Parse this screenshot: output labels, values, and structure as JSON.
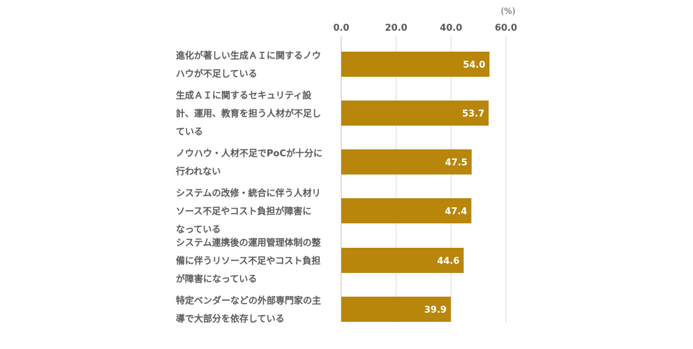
{
  "chart_data": {
    "type": "bar",
    "orientation": "horizontal",
    "unit": "(%)",
    "xlim": [
      0,
      60
    ],
    "ticks": [
      "0.0",
      "20.0",
      "40.0",
      "60.0"
    ],
    "tick_values": [
      0,
      20,
      40,
      60
    ],
    "categories": [
      [
        "進化が著しい生成ＡＩに関するノウ",
        "ハウが不足している"
      ],
      [
        "生成ＡＩに関するセキュリティ設",
        "計、運用、教育を担う人材が不足し",
        "ている"
      ],
      [
        "ノウハウ・人材不足でPoCが十分に",
        "行われない"
      ],
      [
        "システムの改修・統合に伴う人材リ",
        "ソース不足やコスト負担が障害に",
        "なっている"
      ],
      [
        "システム連携後の運用管理体制の整",
        "備に伴うリソース不足やコスト負担",
        "が障害になっている"
      ],
      [
        "特定ベンダーなどの外部専門家の主",
        "導で大部分を依存している"
      ]
    ],
    "values": [
      54.0,
      53.7,
      47.5,
      47.4,
      44.6,
      39.9
    ],
    "value_labels": [
      "54.0",
      "53.7",
      "47.5",
      "47.4",
      "44.6",
      "39.9"
    ],
    "bar_color": "#B8860B",
    "grid": true
  }
}
